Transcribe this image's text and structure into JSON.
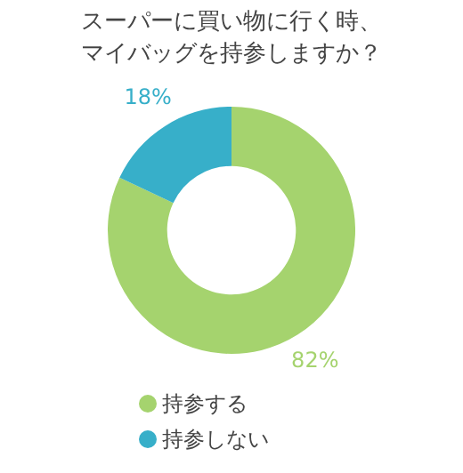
{
  "chart_data": {
    "type": "donut",
    "title": "スーパーに買い物に行く時、マイバッグを持参しますか？",
    "categories": [
      "持参する",
      "持参しない"
    ],
    "values": [
      82,
      18
    ],
    "colors": [
      "#a5d36e",
      "#37afc9"
    ],
    "value_labels": [
      "82%",
      "18%"
    ],
    "legend": "bottom"
  }
}
